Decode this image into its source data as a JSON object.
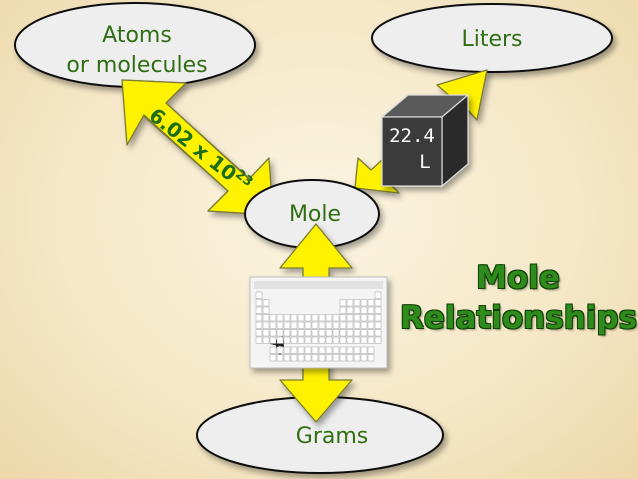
{
  "nodes": {
    "atoms": {
      "line1": "Atoms",
      "line2": "or molecules"
    },
    "liters": {
      "label": "Liters"
    },
    "mole": {
      "label": "Mole"
    },
    "grams": {
      "label": "Grams"
    }
  },
  "avogadro": {
    "mantissa": "6.02 x 10",
    "exponent": "23"
  },
  "volume_cube": {
    "value": "22.4",
    "unit": "L"
  },
  "title": {
    "line1": "Mole",
    "line2": "Relationships"
  },
  "colors": {
    "arrow": "#fff200",
    "node_text": "#2f6e12",
    "title": "#2e8b1c",
    "cube": "#3a3a3a"
  },
  "icons": {
    "periodic_table": "periodic-table-image",
    "cube": "cube-icon"
  }
}
